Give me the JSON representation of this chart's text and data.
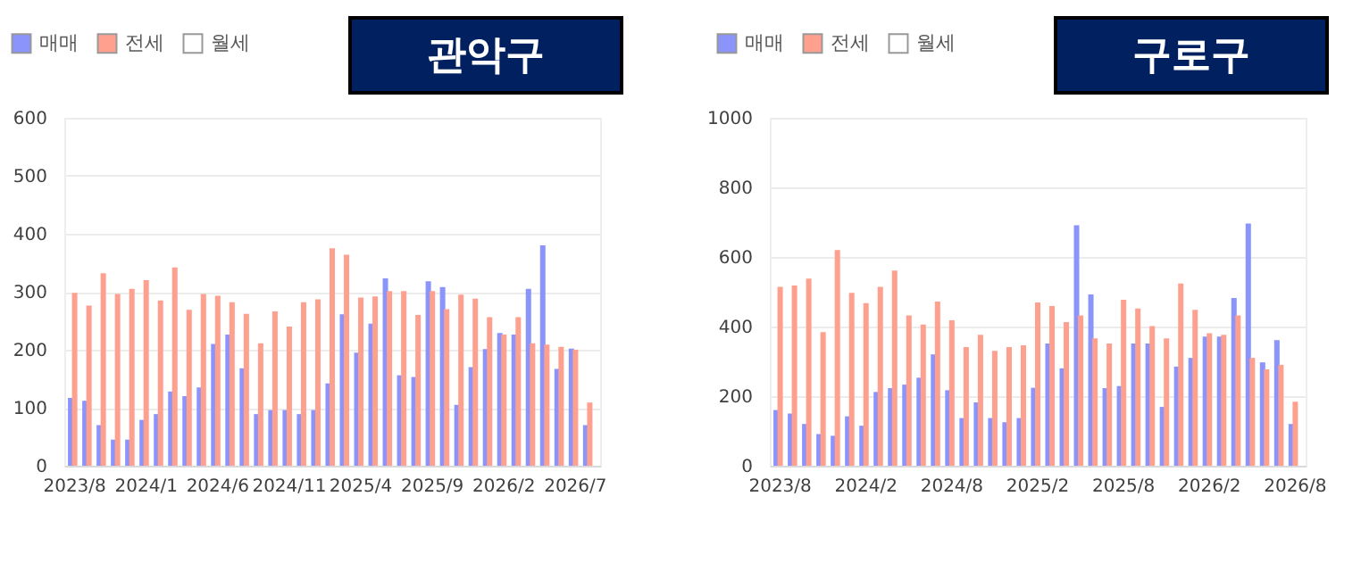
{
  "chart_data": [
    {
      "type": "bar",
      "title": "관악구",
      "categories": [
        "2023/8",
        null,
        null,
        null,
        null,
        "2024/1",
        null,
        null,
        null,
        null,
        "2024/6",
        null,
        null,
        null,
        null,
        "2024/11",
        null,
        null,
        null,
        null,
        "2025/4",
        null,
        null,
        null,
        null,
        "2025/9",
        null,
        null,
        null,
        null,
        "2026/2",
        null,
        null,
        null,
        null,
        "2026/7",
        null
      ],
      "series": [
        {
          "name": "매매",
          "color": "#8a94fb",
          "values": [
            117,
            112,
            70,
            45,
            45,
            79,
            89,
            128,
            120,
            135,
            210,
            226,
            168,
            89,
            96,
            96,
            89,
            96,
            142,
            261,
            195,
            245,
            323,
            156,
            153,
            318,
            308,
            105,
            170,
            201,
            229,
            226,
            305,
            380,
            167,
            202,
            70
          ]
        },
        {
          "name": "전세",
          "color": "#ffa08e",
          "values": [
            298,
            276,
            332,
            296,
            305,
            320,
            285,
            342,
            269,
            296,
            293,
            282,
            262,
            211,
            266,
            240,
            282,
            287,
            375,
            364,
            290,
            292,
            301,
            301,
            260,
            301,
            270,
            295,
            288,
            256,
            226,
            256,
            211,
            209,
            205,
            200,
            109
          ]
        },
        {
          "name": "월세",
          "color": "#ffffff",
          "values": [
            null,
            null,
            null,
            null,
            null,
            null,
            null,
            null,
            null,
            null,
            null,
            null,
            null,
            null,
            null,
            null,
            null,
            null,
            null,
            null,
            null,
            null,
            null,
            null,
            null,
            null,
            null,
            null,
            null,
            null,
            null,
            null,
            null,
            null,
            null,
            null,
            null
          ]
        }
      ],
      "ylim": [
        0,
        600
      ],
      "yticks": [
        0,
        100,
        200,
        300,
        400,
        500,
        600
      ],
      "grid": "y",
      "legend": "top left"
    },
    {
      "type": "bar",
      "title": "구로구",
      "categories": [
        "2023/8",
        null,
        null,
        null,
        null,
        null,
        "2024/2",
        null,
        null,
        null,
        null,
        null,
        "2024/8",
        null,
        null,
        null,
        null,
        null,
        "2025/2",
        null,
        null,
        null,
        null,
        null,
        "2025/8",
        null,
        null,
        null,
        null,
        null,
        "2026/2",
        null,
        null,
        null,
        null,
        null,
        "2026/8"
      ],
      "series": [
        {
          "name": "매매",
          "color": "#8a94fb",
          "values": [
            160,
            150,
            120,
            91,
            86,
            142,
            115,
            212,
            223,
            233,
            253,
            320,
            217,
            137,
            182,
            137,
            125,
            137,
            224,
            351,
            280,
            691,
            492,
            223,
            229,
            351,
            351,
            169,
            285,
            310,
            371,
            371,
            482,
            696,
            297,
            361,
            120
          ]
        },
        {
          "name": "전세",
          "color": "#ffa08e",
          "values": [
            514,
            518,
            538,
            384,
            620,
            497,
            467,
            514,
            561,
            432,
            406,
            472,
            418,
            341,
            376,
            330,
            341,
            346,
            469,
            459,
            413,
            432,
            366,
            351,
            477,
            452,
            401,
            366,
            524,
            448,
            381,
            376,
            432,
            310,
            277,
            290,
            184
          ]
        },
        {
          "name": "월세",
          "color": "#ffffff",
          "values": [
            null,
            null,
            null,
            null,
            null,
            null,
            null,
            null,
            null,
            null,
            null,
            null,
            null,
            null,
            null,
            null,
            null,
            null,
            null,
            null,
            null,
            null,
            null,
            null,
            null,
            null,
            null,
            null,
            null,
            null,
            null,
            null,
            null,
            null,
            null,
            null,
            null
          ]
        }
      ],
      "ylim": [
        0,
        1000
      ],
      "yticks": [
        0,
        200,
        400,
        600,
        800,
        1000
      ],
      "grid": "y",
      "legend": "top left"
    }
  ]
}
